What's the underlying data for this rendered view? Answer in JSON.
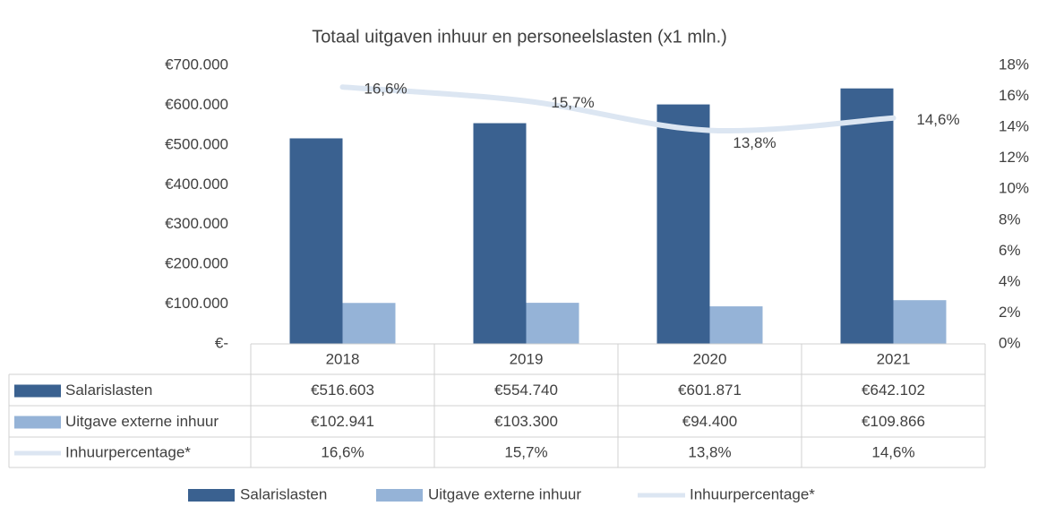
{
  "chart_data": {
    "type": "bar",
    "title": "Totaal uitgaven inhuur en personeelslasten (x1 mln.)",
    "categories": [
      "2018",
      "2019",
      "2020",
      "2021"
    ],
    "series": [
      {
        "name": "Salarislasten",
        "color": "#3a6190",
        "type": "bar",
        "values": [
          516603,
          554740,
          601871,
          642102
        ],
        "value_labels": [
          "€516.603",
          "€554.740",
          "€601.871",
          "€642.102"
        ]
      },
      {
        "name": "Uitgave externe inhuur",
        "color": "#95b3d7",
        "type": "bar",
        "values": [
          102941,
          103300,
          94400,
          109866
        ],
        "value_labels": [
          "€102.941",
          "€103.300",
          "€94.400",
          "€109.866"
        ]
      },
      {
        "name": "Inhuurpercentage*",
        "color": "#dce6f2",
        "type": "line",
        "axis": "y2",
        "values": [
          16.6,
          15.7,
          13.8,
          14.6
        ],
        "value_labels": [
          "16,6%",
          "15,7%",
          "13,8%",
          "14,6%"
        ]
      }
    ],
    "ylim": [
      0,
      700000
    ],
    "yticks": [
      {
        "value": 0,
        "label": "€-"
      },
      {
        "value": 100000,
        "label": "€100.000"
      },
      {
        "value": 200000,
        "label": "€200.000"
      },
      {
        "value": 300000,
        "label": "€300.000"
      },
      {
        "value": 400000,
        "label": "€400.000"
      },
      {
        "value": 500000,
        "label": "€500.000"
      },
      {
        "value": 600000,
        "label": "€600.000"
      },
      {
        "value": 700000,
        "label": "€700.000"
      }
    ],
    "y2lim": [
      0,
      18
    ],
    "y2ticks": [
      {
        "value": 0,
        "label": "0%"
      },
      {
        "value": 2,
        "label": "2%"
      },
      {
        "value": 4,
        "label": "4%"
      },
      {
        "value": 6,
        "label": "6%"
      },
      {
        "value": 8,
        "label": "8%"
      },
      {
        "value": 10,
        "label": "10%"
      },
      {
        "value": 12,
        "label": "12%"
      },
      {
        "value": 14,
        "label": "14%"
      },
      {
        "value": 16,
        "label": "16%"
      },
      {
        "value": 18,
        "label": "18%"
      }
    ],
    "grid": false,
    "data_table": true,
    "legend": "bottom"
  }
}
